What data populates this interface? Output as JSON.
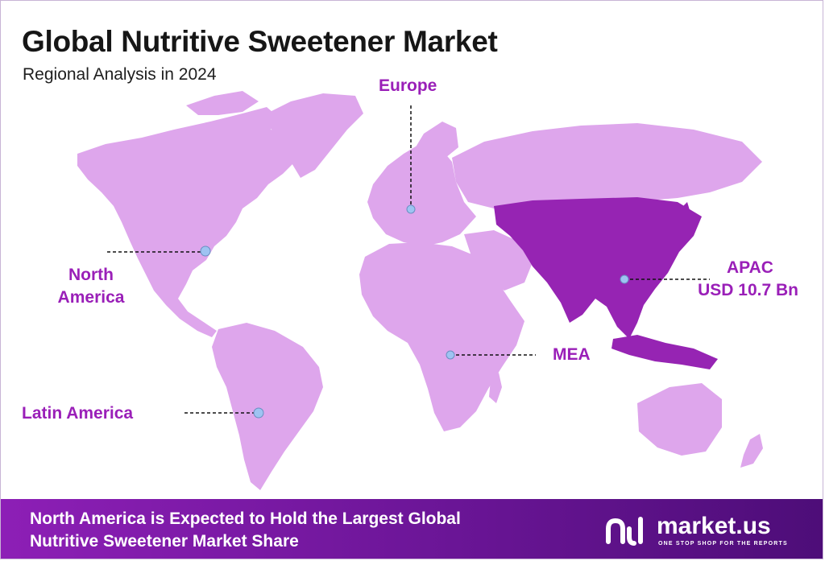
{
  "header": {
    "title": "Global Nutritive Sweetener Market",
    "subtitle": "Regional Analysis in 2024"
  },
  "regions": [
    {
      "name": "Europe",
      "value": ""
    },
    {
      "name": "North America",
      "value": ""
    },
    {
      "name": "Latin America",
      "value": ""
    },
    {
      "name": "MEA",
      "value": ""
    },
    {
      "name": "APAC",
      "value": "USD 10.7 Bn"
    }
  ],
  "region_labels": {
    "europe": "Europe",
    "north_america_line1": "North",
    "north_america_line2": "America",
    "latin_america": "Latin America",
    "mea": "MEA",
    "apac_line1": "APAC",
    "apac_value": "USD 10.7 Bn"
  },
  "highlighted_region": "APAC",
  "colors": {
    "land": "#dea6ec",
    "highlight": "#9624b3",
    "label": "#9a1fb8",
    "marker": "#9ec3f2",
    "footer_start": "#8d1fb6",
    "footer_end": "#4d0d78"
  },
  "footer": {
    "line1": "North America is Expected to Hold the Largest Global",
    "line2": "Nutritive Sweetener Market Share"
  },
  "brand": {
    "name": "market.us",
    "tagline": "ONE STOP SHOP FOR THE REPORTS",
    "icon": "market-us-logo-icon"
  }
}
